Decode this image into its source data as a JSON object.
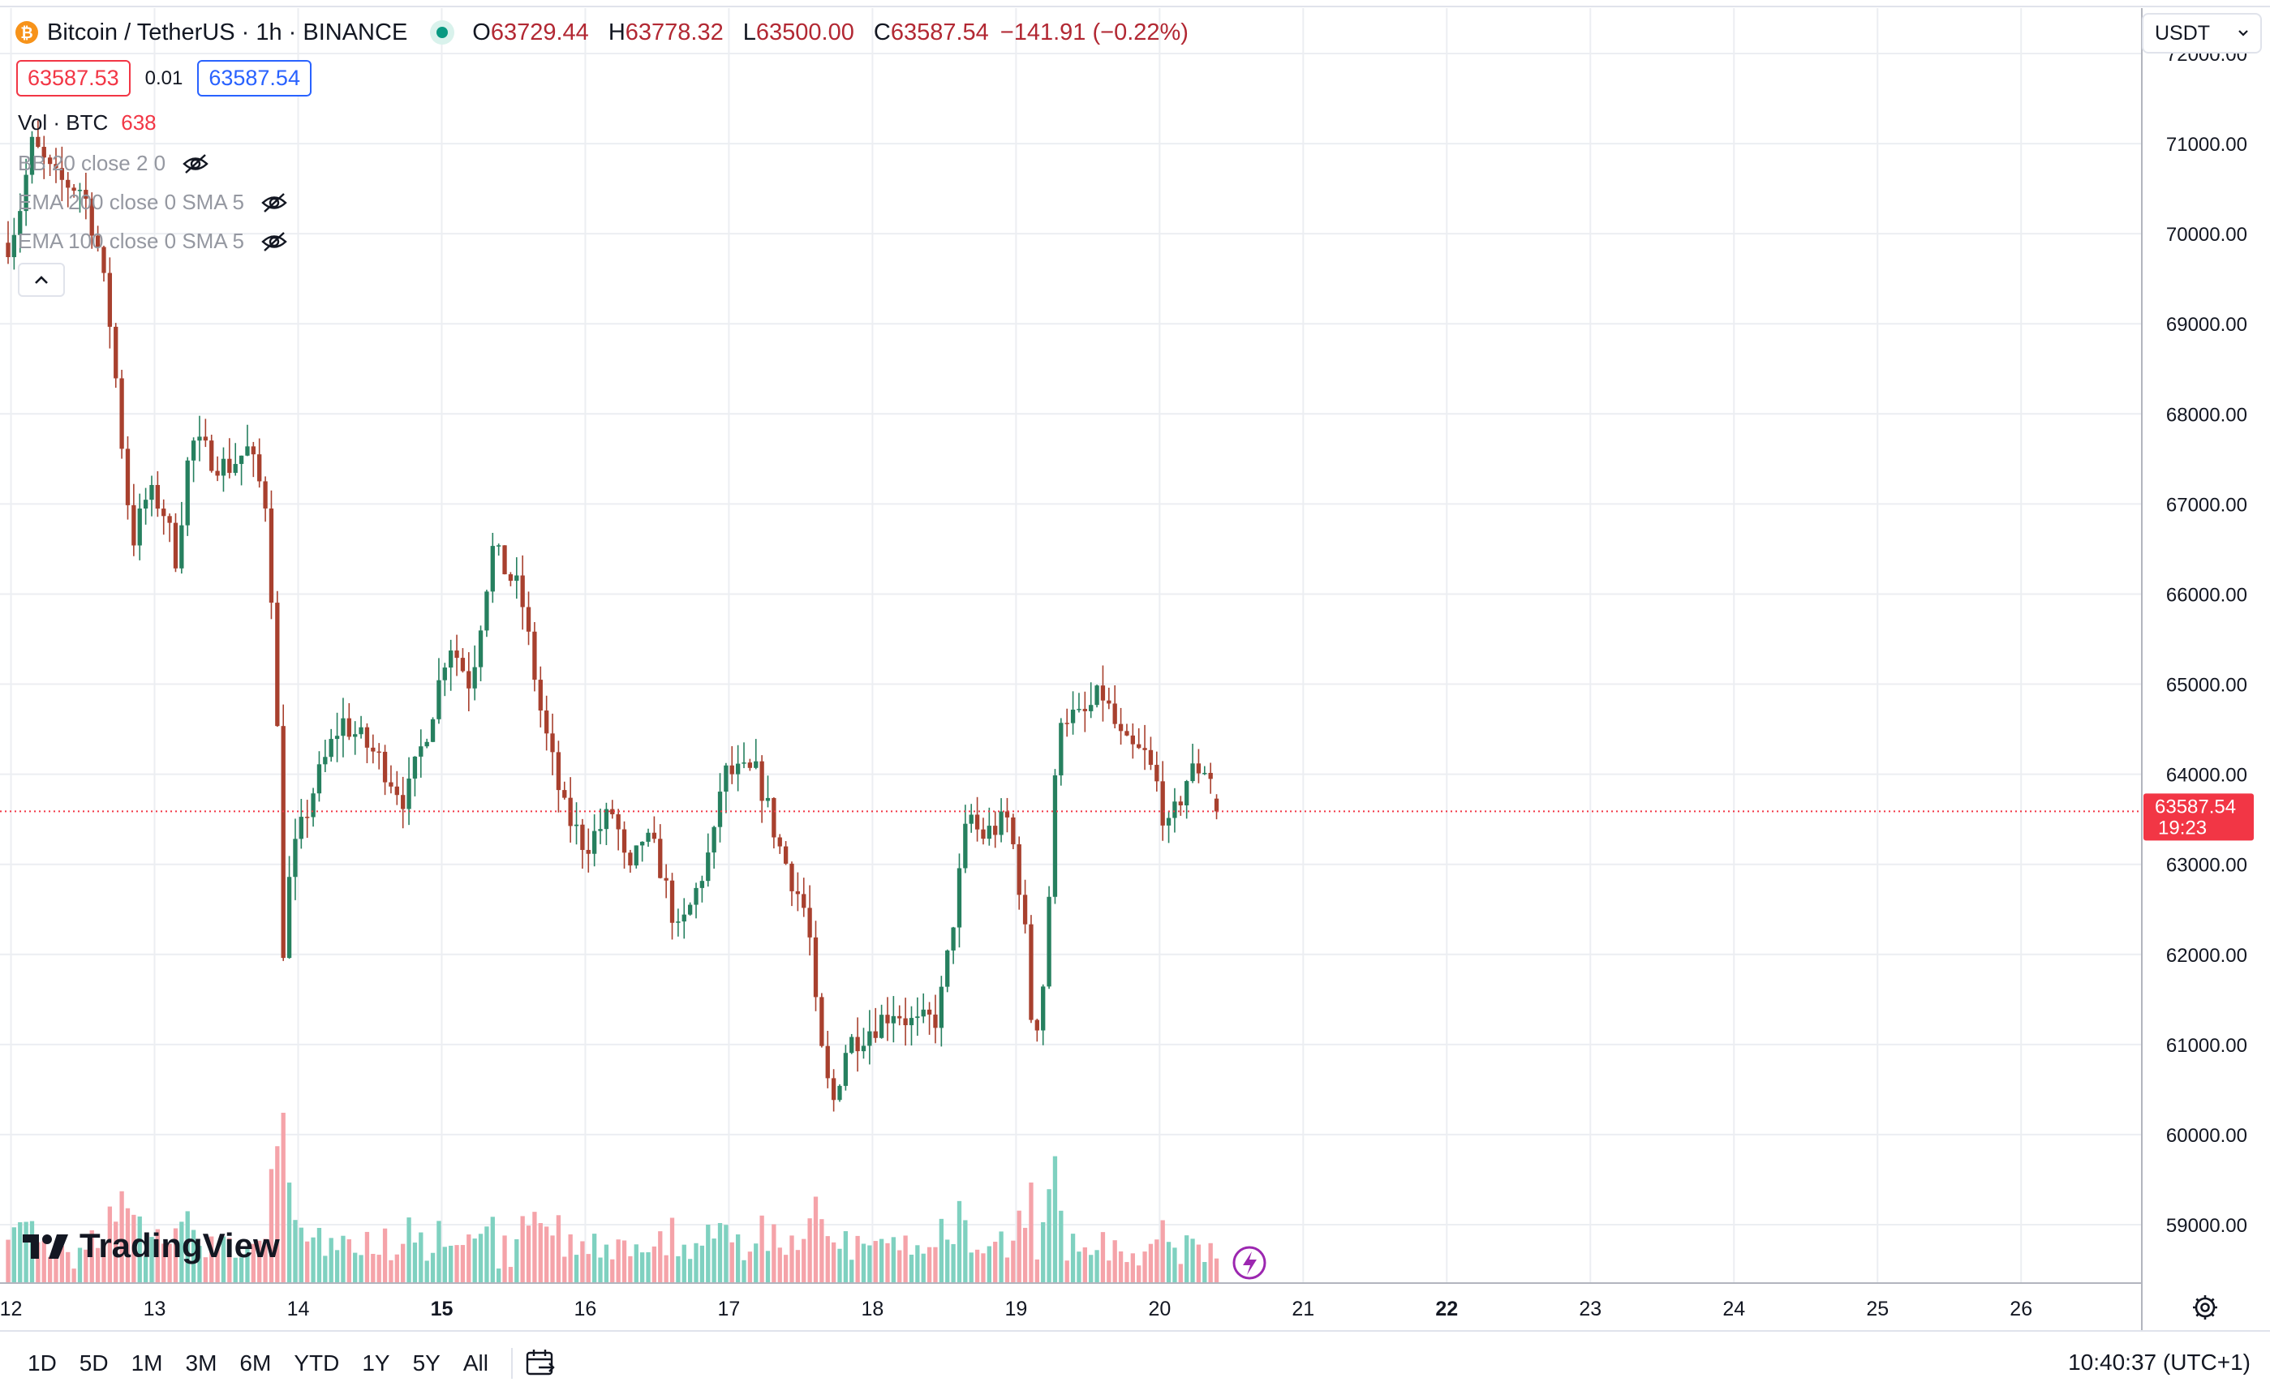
{
  "header": {
    "symbol": "Bitcoin / TetherUS · 1h · BINANCE",
    "ohlc": [
      {
        "k": "O",
        "v": "63729.44"
      },
      {
        "k": "H",
        "v": "63778.32"
      },
      {
        "k": "L",
        "v": "63500.00"
      },
      {
        "k": "C",
        "v": "63587.54"
      }
    ],
    "change": "−141.91 (−0.22%)"
  },
  "trade": {
    "sell": "63587.53",
    "spread": "0.01",
    "buy": "63587.54"
  },
  "indicators": {
    "vol_label": "Vol · BTC",
    "vol_value": "638",
    "bb": "BB 20 close 2 0",
    "ema200": "EMA 200 close 0 SMA 5",
    "ema100": "EMA 100 close 0 SMA 5"
  },
  "currency": "USDT",
  "brand": "TradingView",
  "range_buttons": [
    "1D",
    "5D",
    "1M",
    "3M",
    "6M",
    "YTD",
    "1Y",
    "5Y",
    "All"
  ],
  "clock": "10:40:37 (UTC+1)",
  "price_tag": {
    "price": "63587.54",
    "countdown": "19:23"
  },
  "colors": {
    "up": "#089981",
    "down": "#f23645",
    "candle_down": "#a8402e",
    "candle_up": "#26805f",
    "vol_up": "#7fd1c0",
    "vol_down": "#f5a3a9",
    "grid": "#eceef2"
  },
  "chart_data": {
    "type": "candlestick",
    "interval": "1h",
    "y_range": [
      58500,
      72300
    ],
    "y_ticks": [
      "72000.00",
      "71000.00",
      "70000.00",
      "69000.00",
      "68000.00",
      "67000.00",
      "66000.00",
      "65000.00",
      "64000.00",
      "63000.00",
      "62000.00",
      "61000.00",
      "60000.00",
      "59000.00"
    ],
    "x_ticks": [
      {
        "day": 12.0,
        "label": "12",
        "bold": false
      },
      {
        "day": 13.0,
        "label": "13",
        "bold": false
      },
      {
        "day": 14.0,
        "label": "14",
        "bold": false
      },
      {
        "day": 15.0,
        "label": "15",
        "bold": true
      },
      {
        "day": 16.0,
        "label": "16",
        "bold": false
      },
      {
        "day": 17.0,
        "label": "17",
        "bold": false
      },
      {
        "day": 18.0,
        "label": "18",
        "bold": false
      },
      {
        "day": 19.0,
        "label": "19",
        "bold": false
      },
      {
        "day": 20.0,
        "label": "20",
        "bold": false
      },
      {
        "day": 21.0,
        "label": "21",
        "bold": false
      },
      {
        "day": 22.0,
        "label": "22",
        "bold": true
      },
      {
        "day": 23.0,
        "label": "23",
        "bold": false
      },
      {
        "day": 24.0,
        "label": "24",
        "bold": false
      },
      {
        "day": 25.0,
        "label": "25",
        "bold": false
      },
      {
        "day": 26.0,
        "label": "26",
        "bold": false
      }
    ],
    "x_range": [
      11.98,
      26.4
    ],
    "last_price": 63587.54,
    "key_points": [
      [
        11.98,
        69900
      ],
      [
        12.05,
        70200
      ],
      [
        12.15,
        71000
      ],
      [
        12.3,
        70600
      ],
      [
        12.5,
        70500
      ],
      [
        12.6,
        69900
      ],
      [
        12.7,
        68900
      ],
      [
        12.8,
        67200
      ],
      [
        12.85,
        66600
      ],
      [
        12.95,
        67100
      ],
      [
        13.05,
        67000
      ],
      [
        13.15,
        66400
      ],
      [
        13.25,
        67700
      ],
      [
        13.5,
        67400
      ],
      [
        13.65,
        67600
      ],
      [
        13.78,
        67000
      ],
      [
        13.85,
        65000
      ],
      [
        13.88,
        61800
      ],
      [
        13.95,
        63000
      ],
      [
        14.1,
        63800
      ],
      [
        14.3,
        64600
      ],
      [
        14.55,
        64200
      ],
      [
        14.75,
        63700
      ],
      [
        14.95,
        64800
      ],
      [
        15.05,
        65500
      ],
      [
        15.2,
        65000
      ],
      [
        15.35,
        66500
      ],
      [
        15.55,
        66000
      ],
      [
        15.7,
        64600
      ],
      [
        15.85,
        63600
      ],
      [
        16.0,
        63200
      ],
      [
        16.2,
        63600
      ],
      [
        16.3,
        62800
      ],
      [
        16.4,
        63300
      ],
      [
        16.5,
        63100
      ],
      [
        16.65,
        62200
      ],
      [
        16.75,
        62600
      ],
      [
        16.9,
        63300
      ],
      [
        16.95,
        64000
      ],
      [
        17.2,
        64000
      ],
      [
        17.35,
        63200
      ],
      [
        17.55,
        62400
      ],
      [
        17.62,
        61100
      ],
      [
        17.72,
        60300
      ],
      [
        17.82,
        61000
      ],
      [
        18.0,
        61200
      ],
      [
        18.15,
        61400
      ],
      [
        18.3,
        61200
      ],
      [
        18.45,
        61300
      ],
      [
        18.5,
        61700
      ],
      [
        18.6,
        62800
      ],
      [
        18.67,
        63600
      ],
      [
        18.75,
        63300
      ],
      [
        18.95,
        63500
      ],
      [
        19.05,
        62500
      ],
      [
        19.12,
        61000
      ],
      [
        19.2,
        61800
      ],
      [
        19.3,
        64700
      ],
      [
        19.45,
        64600
      ],
      [
        19.6,
        64900
      ],
      [
        19.75,
        64300
      ],
      [
        19.9,
        64200
      ],
      [
        20.0,
        63800
      ],
      [
        20.05,
        63300
      ],
      [
        20.2,
        64000
      ],
      [
        20.3,
        64100
      ],
      [
        20.4,
        63900
      ],
      [
        20.42,
        63588
      ]
    ]
  }
}
